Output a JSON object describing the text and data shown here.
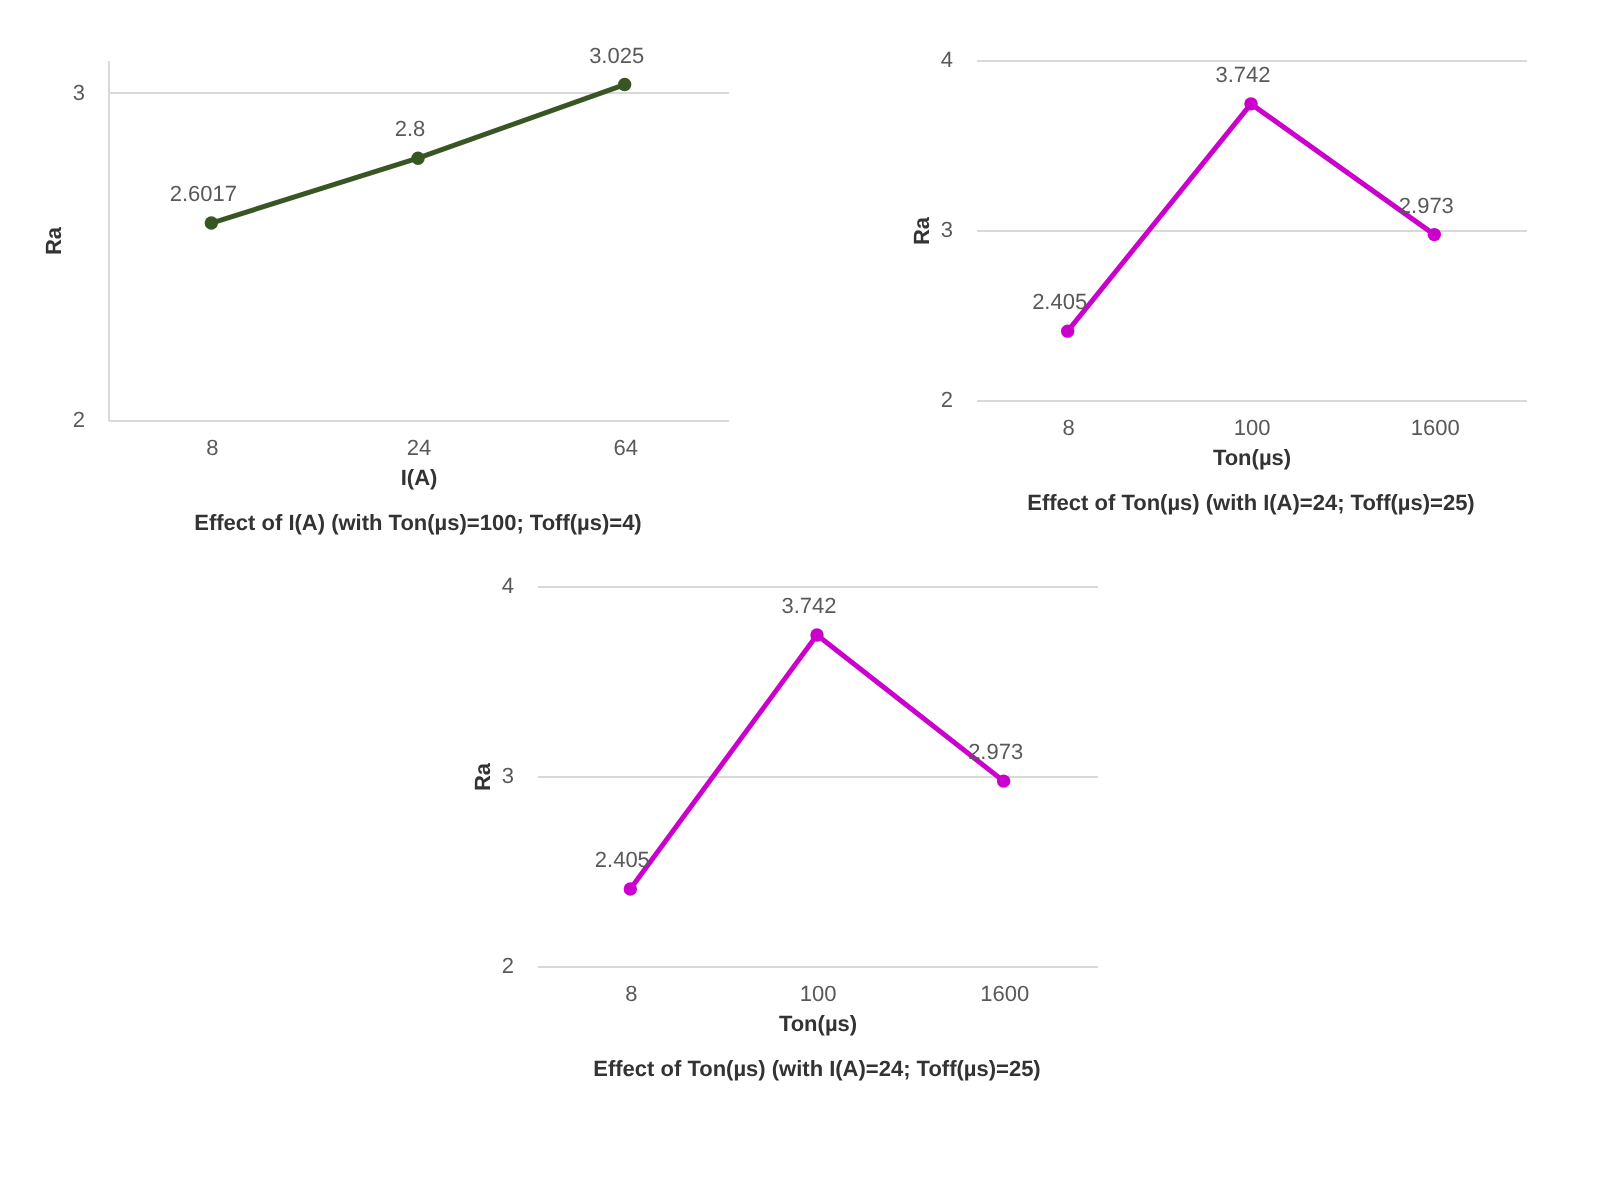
{
  "chart_data": [
    {
      "type": "line",
      "title": "Effect of I(A) (with Ton(µs)=100; Toff(µs)=4)",
      "xlabel": "I(A)",
      "ylabel": "Ra",
      "categories": [
        "8",
        "24",
        "64"
      ],
      "series": [
        {
          "color": "#375623",
          "values": [
            2.6017,
            2.8,
            3.025
          ]
        }
      ],
      "ylim": [
        2,
        3.1
      ],
      "yticks": [
        2,
        3
      ],
      "grid": "y",
      "marker": "circle",
      "data_labels": true
    },
    {
      "type": "line",
      "title": "Effect of Ton(µs) (with I(A)=24; Toff(µs)=25)",
      "xlabel": "Ton(µs)",
      "ylabel": "Ra",
      "categories": [
        "8",
        "100",
        "1600"
      ],
      "series": [
        {
          "color": "#cc00cc",
          "values": [
            2.405,
            3.742,
            2.973
          ]
        }
      ],
      "ylim": [
        2,
        4
      ],
      "yticks": [
        2,
        3,
        4
      ],
      "grid": "y",
      "marker": "circle",
      "data_labels": true
    },
    {
      "type": "line",
      "title": "Effect of Ton(µs) (with I(A)=24; Toff(µs)=25)",
      "xlabel": "Ton(µs)",
      "ylabel": "Ra",
      "categories": [
        "8",
        "100",
        "1600"
      ],
      "series": [
        {
          "color": "#cc00cc",
          "values": [
            2.405,
            3.742,
            2.973
          ]
        }
      ],
      "ylim": [
        2,
        4
      ],
      "yticks": [
        2,
        3,
        4
      ],
      "grid": "y",
      "marker": "circle",
      "data_labels": true
    }
  ]
}
